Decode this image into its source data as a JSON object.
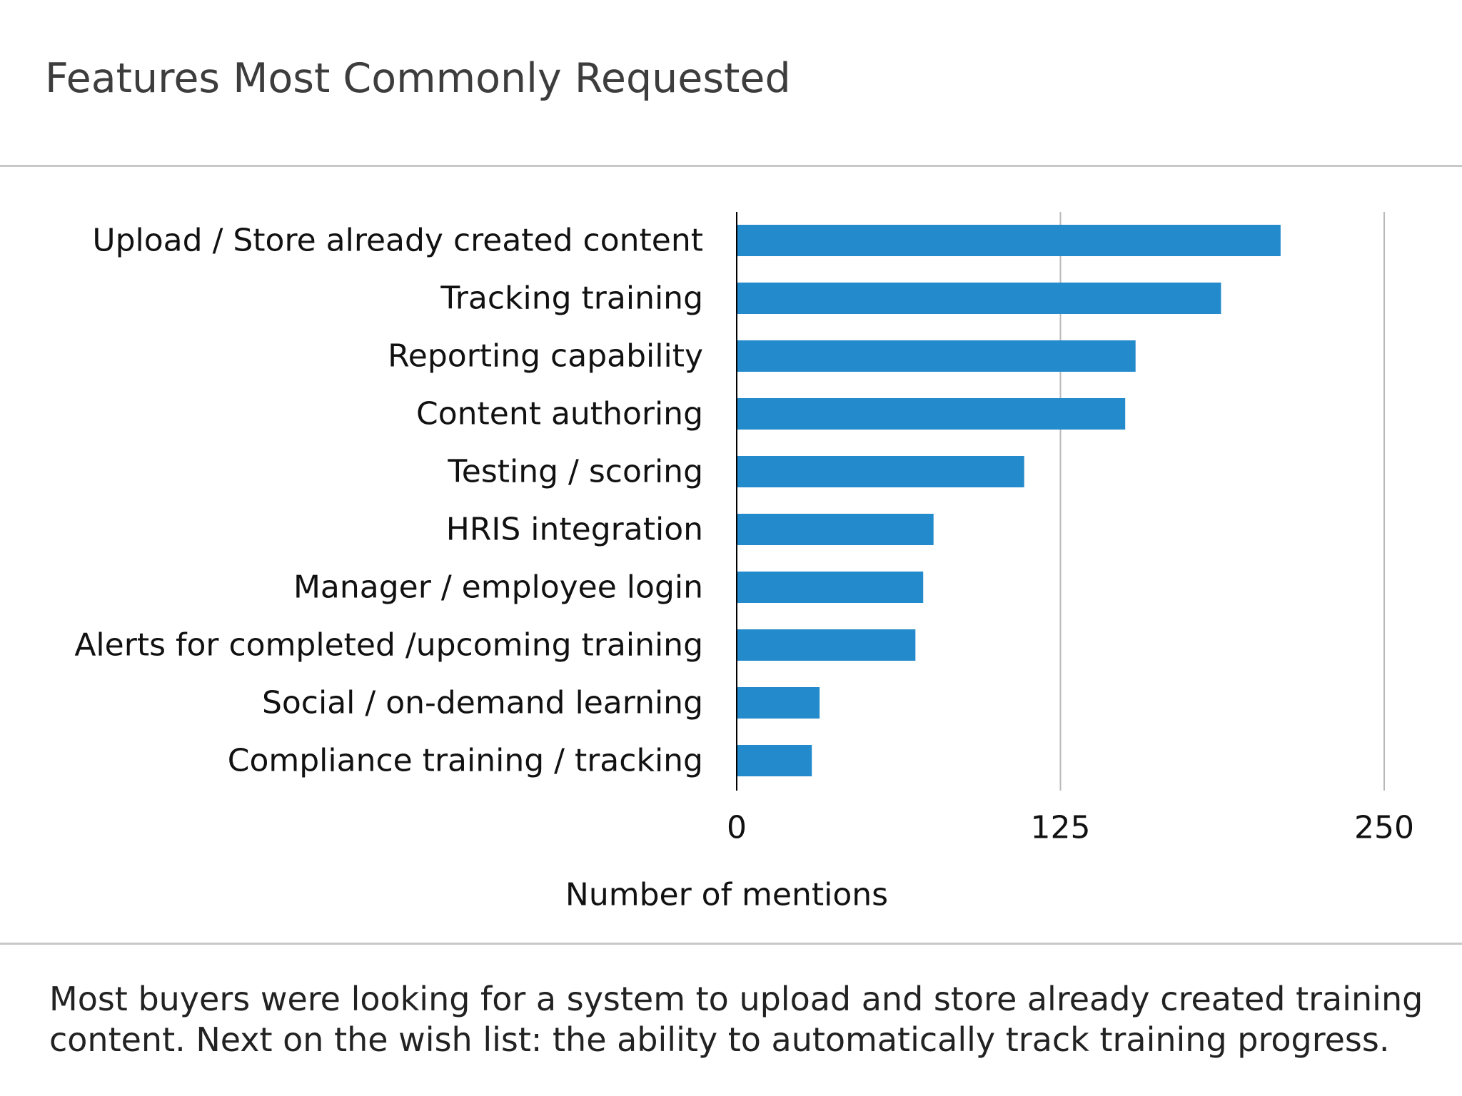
{
  "header": {
    "title": "Features Most Commonly Requested"
  },
  "footer": {
    "note": "Most buyers were looking for a system to upload and store already created training content. Next on the wish list: the ability to automatically track training progress."
  },
  "colors": {
    "bar": "#238acb",
    "grid": "#b8b8b8",
    "axis": "#000000",
    "rule": "#c8c8c8"
  },
  "chart_data": {
    "type": "bar",
    "orientation": "horizontal",
    "title": "Features Most Commonly Requested",
    "xlabel": "Number of mentions",
    "ylabel": "",
    "categories": [
      "Upload / Store already created content",
      "Tracking training",
      "Reporting capability",
      "Content authoring",
      "Testing / scoring",
      "HRIS integration",
      "Manager / employee login",
      "Alerts for completed /upcoming training",
      "Social / on-demand learning",
      "Compliance training / tracking"
    ],
    "values": [
      210,
      187,
      154,
      150,
      111,
      76,
      72,
      69,
      32,
      29
    ],
    "xlim": [
      0,
      250
    ],
    "xticks": [
      0,
      125,
      250
    ],
    "xtick_labels": [
      "0",
      "125",
      "250"
    ],
    "grid": true,
    "legend": "none"
  }
}
